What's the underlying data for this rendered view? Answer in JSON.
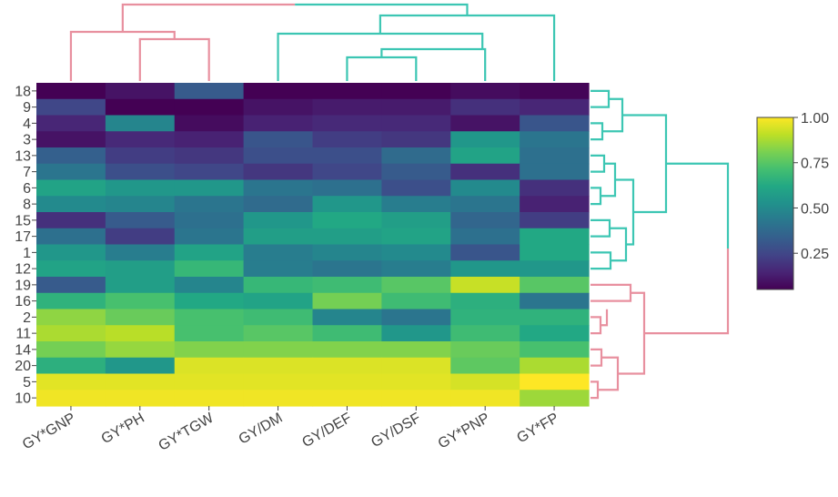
{
  "chart_data": {
    "type": "heatmap",
    "title": "",
    "xlabel": "",
    "ylabel": "",
    "colorscale": "viridis",
    "columns": [
      "GY*GNP",
      "GY*PH",
      "GY*TGW",
      "GY/DM",
      "GY/DEF",
      "GY/DSF",
      "GY*PNP",
      "GY*FP"
    ],
    "rows": [
      "18",
      "9",
      "4",
      "3",
      "13",
      "7",
      "6",
      "8",
      "15",
      "17",
      "1",
      "12",
      "19",
      "16",
      "2",
      "11",
      "14",
      "20",
      "5",
      "10"
    ],
    "values": [
      [
        0.05,
        0.1,
        0.32,
        0.05,
        0.05,
        0.05,
        0.08,
        0.06
      ],
      [
        0.25,
        0.04,
        0.04,
        0.1,
        0.12,
        0.12,
        0.18,
        0.15
      ],
      [
        0.15,
        0.48,
        0.08,
        0.14,
        0.16,
        0.16,
        0.1,
        0.3
      ],
      [
        0.1,
        0.16,
        0.14,
        0.3,
        0.22,
        0.2,
        0.55,
        0.42
      ],
      [
        0.34,
        0.22,
        0.2,
        0.28,
        0.28,
        0.38,
        0.6,
        0.4
      ],
      [
        0.42,
        0.28,
        0.25,
        0.2,
        0.25,
        0.32,
        0.18,
        0.4
      ],
      [
        0.6,
        0.55,
        0.55,
        0.42,
        0.4,
        0.28,
        0.5,
        0.18
      ],
      [
        0.5,
        0.48,
        0.42,
        0.38,
        0.55,
        0.45,
        0.42,
        0.14
      ],
      [
        0.18,
        0.32,
        0.4,
        0.55,
        0.62,
        0.58,
        0.36,
        0.22
      ],
      [
        0.4,
        0.22,
        0.42,
        0.58,
        0.58,
        0.6,
        0.4,
        0.62
      ],
      [
        0.55,
        0.45,
        0.6,
        0.45,
        0.48,
        0.5,
        0.3,
        0.62
      ],
      [
        0.6,
        0.58,
        0.68,
        0.45,
        0.42,
        0.45,
        0.55,
        0.55
      ],
      [
        0.32,
        0.58,
        0.48,
        0.68,
        0.7,
        0.75,
        0.92,
        0.75
      ],
      [
        0.66,
        0.72,
        0.62,
        0.6,
        0.8,
        0.7,
        0.65,
        0.42
      ],
      [
        0.84,
        0.78,
        0.72,
        0.7,
        0.48,
        0.42,
        0.66,
        0.66
      ],
      [
        0.88,
        0.9,
        0.72,
        0.75,
        0.7,
        0.55,
        0.7,
        0.62
      ],
      [
        0.8,
        0.85,
        0.82,
        0.82,
        0.82,
        0.82,
        0.78,
        0.72
      ],
      [
        0.65,
        0.55,
        0.95,
        0.95,
        0.95,
        0.95,
        0.76,
        0.88
      ],
      [
        0.96,
        0.96,
        0.96,
        0.96,
        0.96,
        0.96,
        0.94,
        1.0
      ],
      [
        0.98,
        0.98,
        0.98,
        0.98,
        0.98,
        0.98,
        0.98,
        0.86
      ]
    ],
    "colorbar": {
      "range": [
        0.05,
        1.0
      ],
      "ticks": [
        0.25,
        0.5,
        0.75,
        1.0
      ],
      "tick_labels": [
        "0.25",
        "0.50",
        "0.75",
        "1.00"
      ]
    },
    "dendrograms": {
      "top": {
        "pink_color": "#e8909f",
        "teal_color": "#3cc6b3",
        "merge_heights_relative": [
          0.72,
          0.82,
          0.35,
          0.48,
          0.58,
          0.7,
          0.9,
          1.0
        ]
      },
      "right": {
        "pink_color": "#e8909f",
        "teal_color": "#3cc6b3",
        "root_split": "rows 18..12 teal cluster, rows 19..10 pink cluster"
      }
    }
  }
}
